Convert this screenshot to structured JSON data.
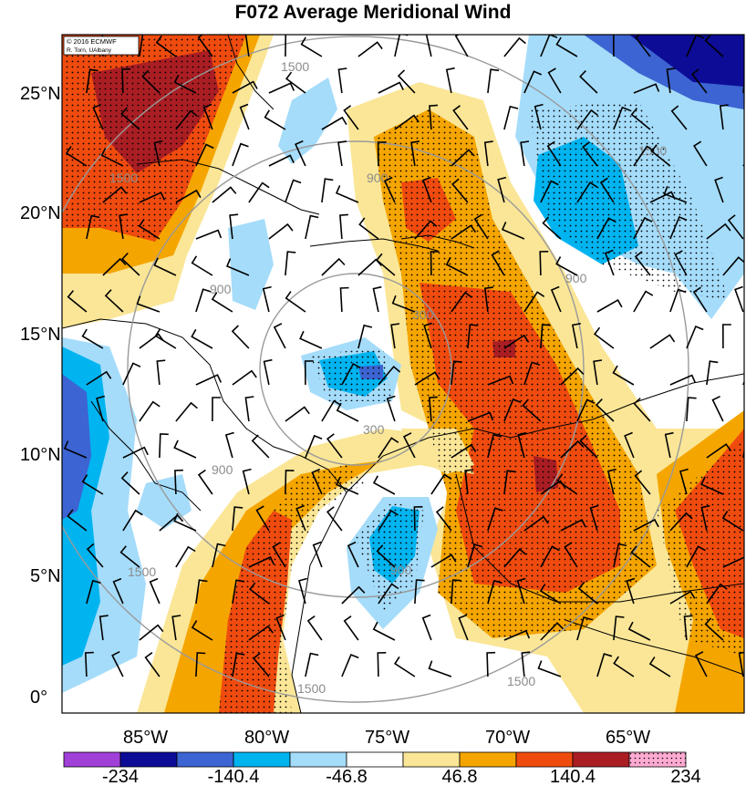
{
  "title": "F072 Average Meridional Wind",
  "credit": {
    "line1": "© 2016 ECMWF",
    "line2": "R. Torn, UAlbany"
  },
  "lat_labels": [
    {
      "value": 25,
      "text": "25°N"
    },
    {
      "value": 20,
      "text": "20°N"
    },
    {
      "value": 15,
      "text": "15°N"
    },
    {
      "value": 10,
      "text": "10°N"
    },
    {
      "value": 5,
      "text": "5°N"
    },
    {
      "value": 0,
      "text": "0°"
    }
  ],
  "lon_labels": [
    {
      "value": -85,
      "text": "85°W"
    },
    {
      "value": -80,
      "text": "80°W"
    },
    {
      "value": -75,
      "text": "75°W"
    },
    {
      "value": -70,
      "text": "70°W"
    },
    {
      "value": -65,
      "text": "65°W"
    }
  ],
  "range_rings": {
    "center_lon": -76,
    "center_lat": 13.5,
    "radii_km": [
      300,
      900,
      1500
    ],
    "labels": [
      "300",
      "900",
      "1500"
    ]
  },
  "colorbar": {
    "colors": [
      "#a140d8",
      "#0c0c96",
      "#3c64d2",
      "#00b4f0",
      "#a5dcfa",
      "#ffffff",
      "#fae696",
      "#f5a500",
      "#f04b0f",
      "#aa1e23",
      "#ffaad2"
    ],
    "labels": [
      "-234",
      "-140.4",
      "-46.8",
      "46.8",
      "140.4",
      "234"
    ]
  }
}
